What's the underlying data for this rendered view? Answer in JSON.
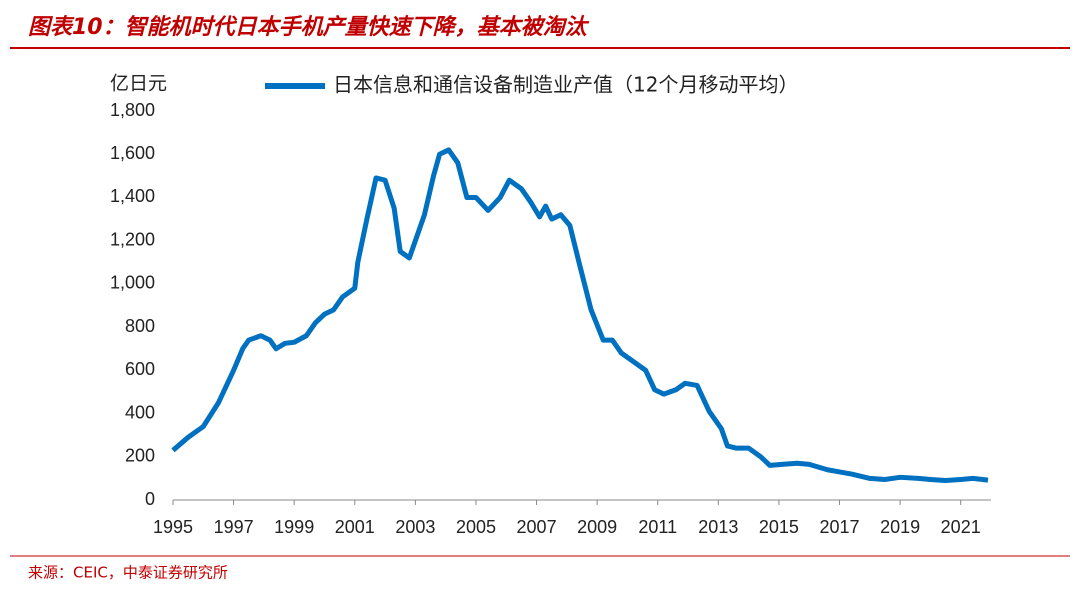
{
  "chart_data": {
    "type": "line",
    "title": "图表10：智能机时代日本手机产量快速下降，基本被淘汰",
    "y_axis_label": "亿日元",
    "source": "来源：CEIC，中泰证券研究所",
    "x": [
      1995.0,
      1995.5,
      1996.0,
      1996.5,
      1997.0,
      1997.3,
      1997.5,
      1997.9,
      1998.2,
      1998.4,
      1998.7,
      1999.0,
      1999.4,
      1999.7,
      2000.0,
      2000.3,
      2000.6,
      2001.0,
      2001.1,
      2001.4,
      2001.7,
      2002.0,
      2002.3,
      2002.5,
      2002.8,
      2003.0,
      2003.3,
      2003.6,
      2003.8,
      2004.1,
      2004.4,
      2004.7,
      2005.0,
      2005.4,
      2005.8,
      2006.1,
      2006.5,
      2006.8,
      2007.1,
      2007.3,
      2007.5,
      2007.8,
      2008.1,
      2008.4,
      2008.8,
      2009.2,
      2009.5,
      2009.8,
      2010.2,
      2010.6,
      2010.9,
      2011.2,
      2011.6,
      2011.9,
      2012.3,
      2012.7,
      2013.1,
      2013.3,
      2013.6,
      2014.0,
      2014.4,
      2014.7,
      2015.1,
      2015.6,
      2016.0,
      2016.6,
      2017.0,
      2017.4,
      2018.0,
      2018.5,
      2019.0,
      2019.6,
      2020.0,
      2020.5,
      2021.0,
      2021.4,
      2021.9
    ],
    "series": [
      {
        "name": "日本信息和通信设备制造业产值（12个月移动平均）",
        "color": "#0070c0",
        "values": [
          230,
          290,
          340,
          450,
          600,
          700,
          740,
          760,
          740,
          700,
          725,
          730,
          760,
          820,
          860,
          880,
          940,
          980,
          1100,
          1300,
          1490,
          1480,
          1350,
          1150,
          1120,
          1200,
          1320,
          1500,
          1600,
          1620,
          1560,
          1400,
          1400,
          1340,
          1400,
          1480,
          1440,
          1380,
          1310,
          1360,
          1300,
          1320,
          1270,
          1100,
          880,
          740,
          740,
          680,
          640,
          600,
          510,
          490,
          510,
          540,
          530,
          410,
          330,
          250,
          240,
          240,
          200,
          160,
          165,
          170,
          165,
          140,
          130,
          120,
          100,
          95,
          105,
          100,
          95,
          90,
          95,
          100,
          92
        ]
      }
    ],
    "xlim": [
      1995,
      2022
    ],
    "xticks": [
      1995,
      1997,
      1999,
      2001,
      2003,
      2005,
      2007,
      2009,
      2011,
      2013,
      2015,
      2017,
      2019,
      2021
    ],
    "ylim": [
      0,
      1800
    ],
    "yticks": [
      0,
      200,
      400,
      600,
      800,
      {
        "value": 1000,
        "label": "1,000"
      },
      {
        "value": 1200,
        "label": "1,200"
      },
      {
        "value": 1400,
        "label": "1,400"
      },
      {
        "value": 1600,
        "label": "1,600"
      },
      {
        "value": 1800,
        "label": "1,800"
      }
    ],
    "legend": "top"
  }
}
